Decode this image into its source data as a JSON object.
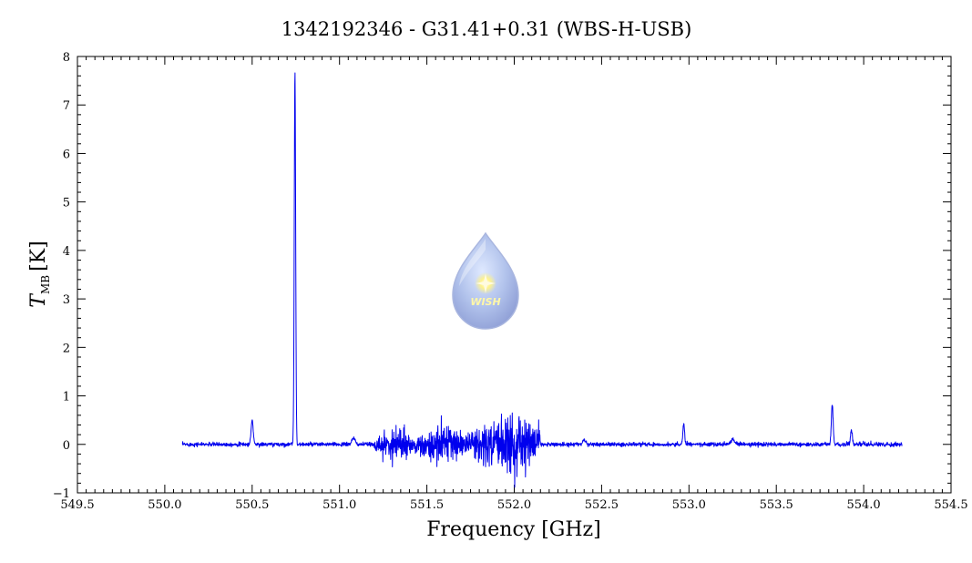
{
  "chart_data": {
    "type": "line",
    "title": "1342192346 - G31.41+0.31 (WBS-H-USB)",
    "xlabel": "Frequency [GHz]",
    "ylabel": {
      "main": "T",
      "subscript": "MB",
      "unit": "[K]"
    },
    "xlim": [
      549.5,
      554.5
    ],
    "ylim": [
      -1,
      8
    ],
    "xticks": [
      "549.5",
      "550.0",
      "550.5",
      "551.0",
      "551.5",
      "552.0",
      "552.5",
      "553.0",
      "553.5",
      "554.0",
      "554.5"
    ],
    "yticks": [
      "-1",
      "0",
      "1",
      "2",
      "3",
      "4",
      "5",
      "6",
      "7",
      "8"
    ],
    "grid": false,
    "color": "#0000ee",
    "spectrum_range": [
      550.1,
      554.22
    ],
    "features": [
      {
        "center": 550.5,
        "peak": 0.5,
        "width": 0.006
      },
      {
        "center": 550.745,
        "peak": 7.7,
        "width": 0.004
      },
      {
        "center": 551.08,
        "peak": 0.12,
        "width": 0.01
      },
      {
        "center": 552.4,
        "peak": 0.1,
        "width": 0.008
      },
      {
        "center": 552.97,
        "peak": 0.42,
        "width": 0.005
      },
      {
        "center": 553.25,
        "peak": 0.12,
        "width": 0.01
      },
      {
        "center": 553.82,
        "peak": 0.82,
        "width": 0.005
      },
      {
        "center": 553.93,
        "peak": 0.3,
        "width": 0.005
      }
    ],
    "noisy_bands": [
      {
        "range": [
          551.2,
          551.45
        ],
        "amplitude": 0.35
      },
      {
        "range": [
          551.45,
          551.75
        ],
        "amplitude": 0.45
      },
      {
        "range": [
          551.75,
          552.15
        ],
        "amplitude": 0.7
      }
    ]
  },
  "logo": {
    "text": "WISH"
  }
}
